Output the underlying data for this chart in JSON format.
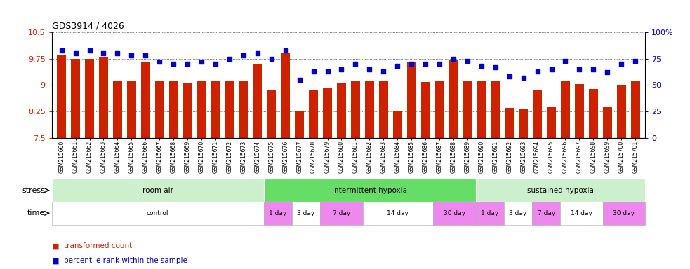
{
  "title": "GDS3914 / 4026",
  "samples": [
    "GSM215660",
    "GSM215661",
    "GSM215662",
    "GSM215663",
    "GSM215664",
    "GSM215665",
    "GSM215666",
    "GSM215667",
    "GSM215668",
    "GSM215669",
    "GSM215670",
    "GSM215671",
    "GSM215672",
    "GSM215673",
    "GSM215674",
    "GSM215675",
    "GSM215676",
    "GSM215677",
    "GSM215678",
    "GSM215679",
    "GSM215680",
    "GSM215681",
    "GSM215682",
    "GSM215683",
    "GSM215684",
    "GSM215685",
    "GSM215686",
    "GSM215687",
    "GSM215688",
    "GSM215689",
    "GSM215690",
    "GSM215691",
    "GSM215692",
    "GSM215693",
    "GSM215694",
    "GSM215695",
    "GSM215696",
    "GSM215697",
    "GSM215698",
    "GSM215699",
    "GSM215700",
    "GSM215701"
  ],
  "bar_values": [
    9.87,
    9.75,
    9.75,
    9.8,
    9.13,
    9.13,
    9.65,
    9.13,
    9.13,
    9.05,
    9.1,
    9.1,
    9.1,
    9.13,
    9.58,
    8.87,
    9.93,
    8.28,
    8.87,
    8.93,
    9.05,
    9.1,
    9.13,
    9.12,
    8.28,
    9.67,
    9.08,
    9.1,
    9.7,
    9.12,
    9.1,
    9.12,
    8.36,
    8.32,
    8.87,
    8.37,
    9.1,
    9.02,
    8.88,
    8.38,
    9.0,
    9.13
  ],
  "dot_values": [
    83,
    80,
    83,
    80,
    80,
    78,
    78,
    72,
    70,
    70,
    72,
    70,
    75,
    78,
    80,
    75,
    83,
    55,
    63,
    63,
    65,
    70,
    65,
    63,
    68,
    70,
    70,
    70,
    75,
    73,
    68,
    67,
    58,
    57,
    63,
    65,
    73,
    65,
    65,
    62,
    70,
    73
  ],
  "ylim_left": [
    7.5,
    10.5
  ],
  "ylim_right": [
    0,
    100
  ],
  "yticks_left": [
    7.5,
    8.25,
    9.0,
    9.75,
    10.5
  ],
  "yticks_right": [
    0,
    25,
    50,
    75,
    100
  ],
  "ytick_labels_left": [
    "7.5",
    "8.25",
    "9",
    "9.75",
    "10.5"
  ],
  "ytick_labels_right": [
    "0",
    "25",
    "50",
    "75",
    "100%"
  ],
  "bar_color": "#cc2200",
  "dot_color": "#0000cc",
  "background_color": "#ffffff",
  "stress_groups": [
    {
      "label": "room air",
      "start": 0,
      "end": 15,
      "color": "#ccf0cc"
    },
    {
      "label": "intermittent hypoxia",
      "start": 15,
      "end": 30,
      "color": "#66dd66"
    },
    {
      "label": "sustained hypoxia",
      "start": 30,
      "end": 42,
      "color": "#ccf0cc"
    }
  ],
  "time_groups": [
    {
      "label": "control",
      "start": 0,
      "end": 15,
      "color": "#ffffff"
    },
    {
      "label": "1 day",
      "start": 15,
      "end": 17,
      "color": "#ee88ee"
    },
    {
      "label": "3 day",
      "start": 17,
      "end": 19,
      "color": "#ffffff"
    },
    {
      "label": "7 day",
      "start": 19,
      "end": 22,
      "color": "#ee88ee"
    },
    {
      "label": "14 day",
      "start": 22,
      "end": 27,
      "color": "#ffffff"
    },
    {
      "label": "30 day",
      "start": 27,
      "end": 30,
      "color": "#ee88ee"
    },
    {
      "label": "1 day",
      "start": 30,
      "end": 32,
      "color": "#ffffff"
    },
    {
      "label": "3 day",
      "start": 32,
      "end": 34,
      "color": "#ffffff"
    },
    {
      "label": "7 day",
      "start": 34,
      "end": 36,
      "color": "#ffffff"
    },
    {
      "label": "14 day",
      "start": 36,
      "end": 39,
      "color": "#ffffff"
    },
    {
      "label": "30 day",
      "start": 39,
      "end": 42,
      "color": "#ee88ee"
    }
  ],
  "legend_items": [
    {
      "label": "transformed count",
      "color": "#cc2200"
    },
    {
      "label": "percentile rank within the sample",
      "color": "#0000cc"
    }
  ]
}
